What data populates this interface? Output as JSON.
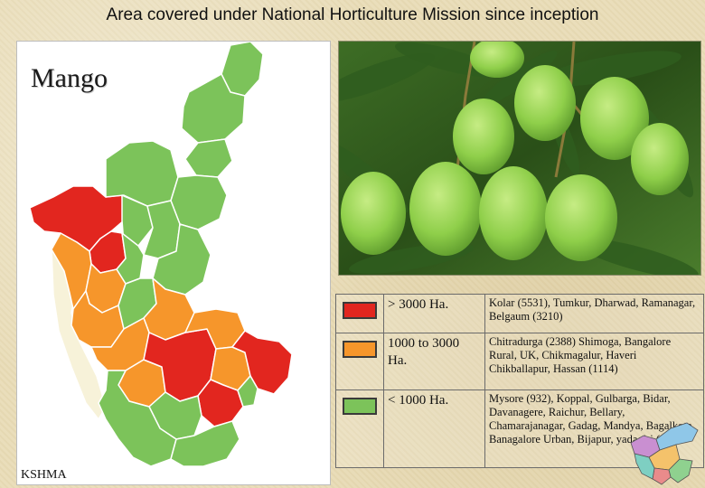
{
  "title": "Area covered under National Horticulture Mission since inception",
  "map": {
    "heading": "Mango",
    "credit": "KSHMA",
    "colors": {
      "high": "#e2261f",
      "medium": "#f6962b",
      "low": "#7cc35a",
      "coast": "#f7f2d9",
      "outline": "#ffffff"
    }
  },
  "photo": {
    "subject": "green mangoes on tree",
    "colors": {
      "leaf": "#2f5d1e",
      "fruit": "#8fcf4a",
      "stem": "#8a7a3a"
    }
  },
  "legend": {
    "rows": [
      {
        "color": "#e2261f",
        "range": "> 3000 Ha.",
        "districts": "Kolar (5531), Tumkur, Dharwad, Ramanagar, Belgaum (3210)"
      },
      {
        "color": "#f6962b",
        "range": "1000 to 3000 Ha.",
        "districts": "Chitradurga (2388) Shimoga, Bangalore Rural, UK, Chikmagalur, Haveri Chikballapur, Hassan (1114)"
      },
      {
        "color": "#7cc35a",
        "range": "< 1000 Ha.",
        "districts": "Mysore (932), Koppal, Gulbarga, Bidar, Davanagere, Raichur, Bellary, Chamarajanagar, Gadag, Mandya, Bagalkote, Banagalore Urban, Bijapur, yadagiri (50)"
      }
    ]
  },
  "inset": {
    "colors": [
      "#c98fd1",
      "#8fc7e8",
      "#f4c26b",
      "#8fd18f",
      "#e98b8b",
      "#7ecfc2"
    ]
  }
}
